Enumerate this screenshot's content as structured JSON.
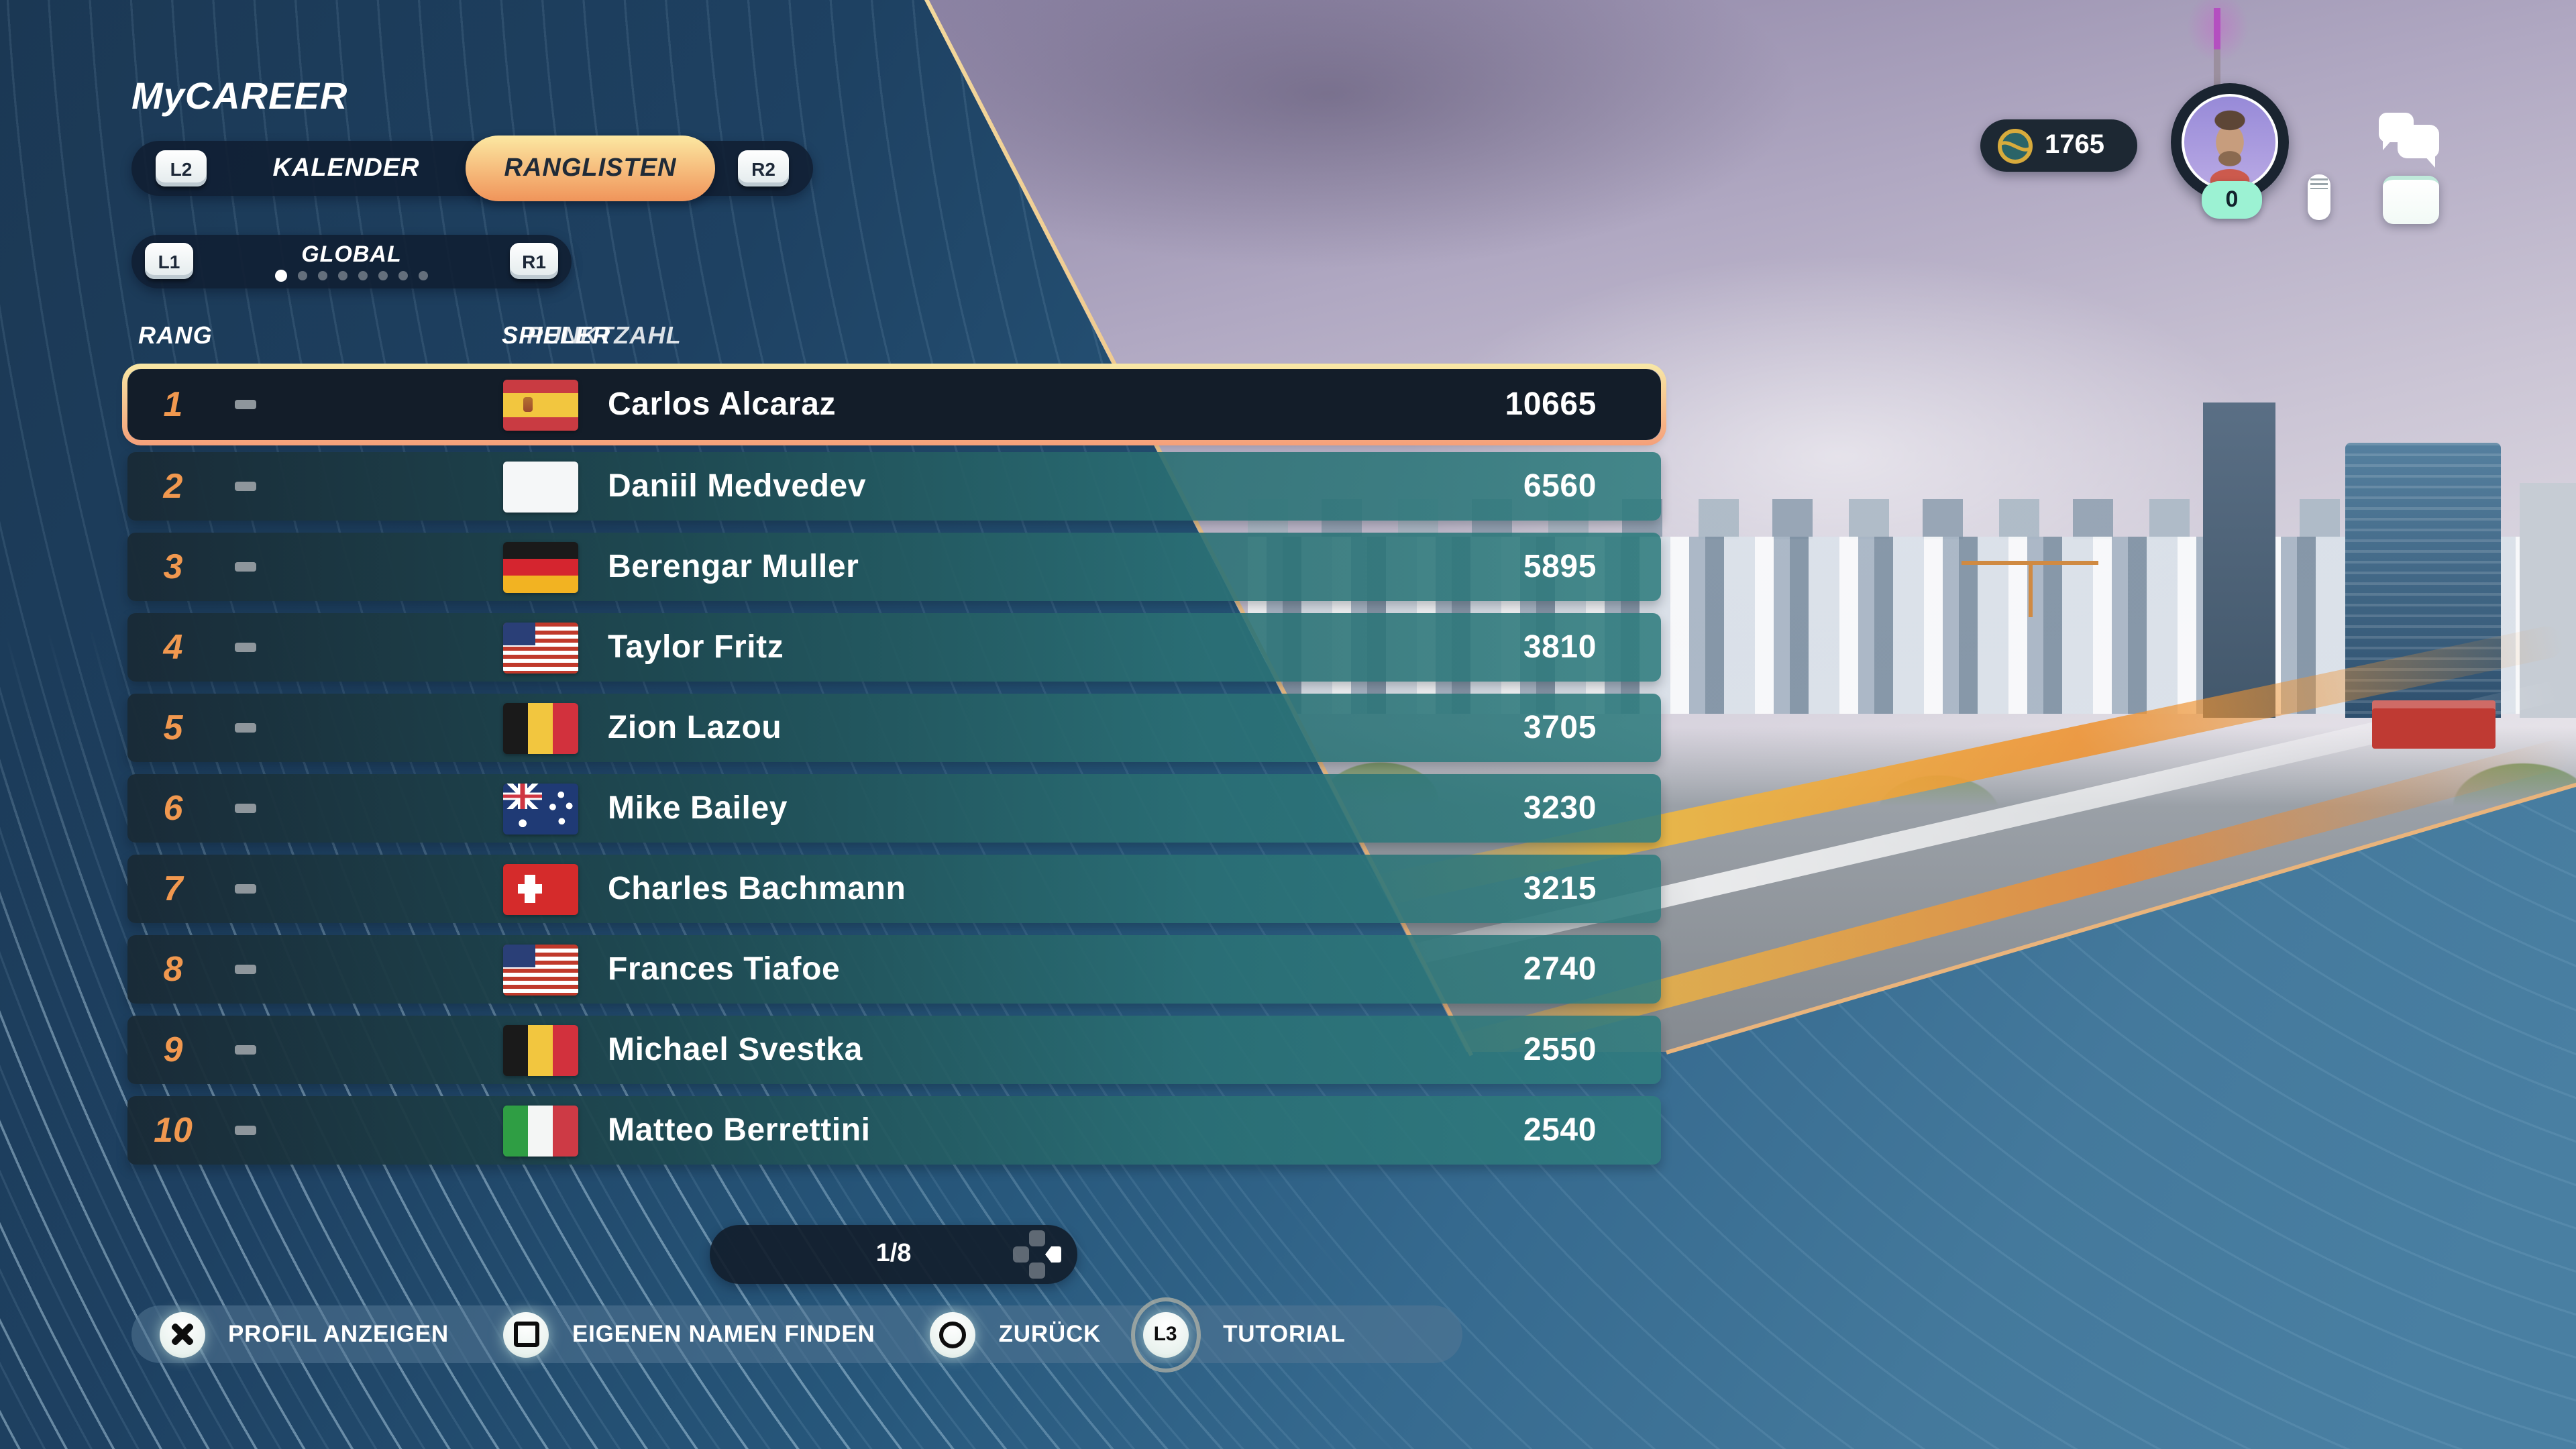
{
  "title": "MyCAREER",
  "tabs": {
    "left_bumper": "L2",
    "right_bumper": "R2",
    "items": [
      {
        "label": "KALENDER",
        "active": false
      },
      {
        "label": "RANGLISTEN",
        "active": true
      }
    ]
  },
  "region_selector": {
    "left_bumper": "L1",
    "right_bumper": "R1",
    "label": "GLOBAL",
    "page_count": 8,
    "active_page": 1
  },
  "table": {
    "columns": [
      "RANG",
      "SPIELER",
      "PUNKTZAHL"
    ],
    "rows": [
      {
        "rank": "1",
        "change": "none",
        "flag": "es",
        "player": "Carlos Alcaraz",
        "points": "10665",
        "selected": true
      },
      {
        "rank": "2",
        "change": "none",
        "flag": "neutral",
        "player": "Daniil Medvedev",
        "points": "6560",
        "selected": false
      },
      {
        "rank": "3",
        "change": "none",
        "flag": "de",
        "player": "Berengar Muller",
        "points": "5895",
        "selected": false
      },
      {
        "rank": "4",
        "change": "none",
        "flag": "us",
        "player": "Taylor Fritz",
        "points": "3810",
        "selected": false
      },
      {
        "rank": "5",
        "change": "none",
        "flag": "be",
        "player": "Zion Lazou",
        "points": "3705",
        "selected": false
      },
      {
        "rank": "6",
        "change": "none",
        "flag": "au",
        "player": "Mike Bailey",
        "points": "3230",
        "selected": false
      },
      {
        "rank": "7",
        "change": "none",
        "flag": "ch",
        "player": "Charles Bachmann",
        "points": "3215",
        "selected": false
      },
      {
        "rank": "8",
        "change": "none",
        "flag": "us",
        "player": "Frances Tiafoe",
        "points": "2740",
        "selected": false
      },
      {
        "rank": "9",
        "change": "none",
        "flag": "be",
        "player": "Michael Svestka",
        "points": "2550",
        "selected": false
      },
      {
        "rank": "10",
        "change": "none",
        "flag": "it",
        "player": "Matteo Berrettini",
        "points": "2540",
        "selected": false
      }
    ]
  },
  "pagination": {
    "label": "1/8",
    "icon": "dpad-right-icon"
  },
  "hud": {
    "coins": "1765",
    "coin_icon": "coin-icon",
    "notification_badge": "0",
    "avatar_icon": "player-avatar",
    "status_icons": [
      "chat-bubbles-icon",
      "battery-icon",
      "touchpad-icon"
    ]
  },
  "hints": [
    {
      "button": "cross-button-icon",
      "label": "PROFIL ANZEIGEN"
    },
    {
      "button": "square-button-icon",
      "label": "EIGENEN NAMEN FINDEN"
    },
    {
      "button": "circle-button-icon",
      "label": "ZURÜCK"
    },
    {
      "button": "l3-button-icon",
      "key": "L3",
      "label": "TUTORIAL"
    }
  ],
  "colors": {
    "accent_orange": "#f1984f",
    "tab_active_top": "#fce8a2",
    "tab_active_bottom": "#f0945a",
    "row_teal": "#2d7c80",
    "panel_navy": "#1c3a58",
    "badge_mint": "#9cf2d3"
  }
}
